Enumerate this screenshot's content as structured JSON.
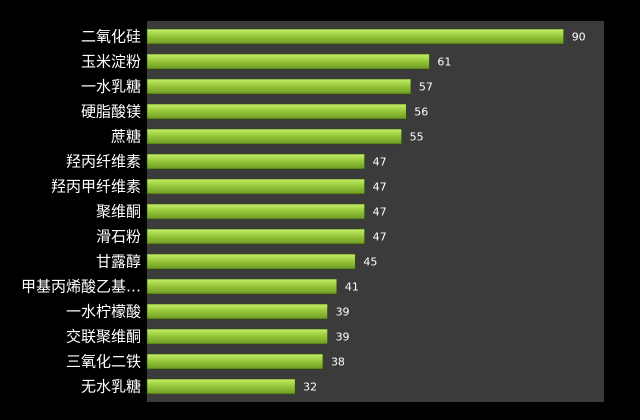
{
  "chart_data": {
    "type": "bar",
    "orientation": "horizontal",
    "categories": [
      "二氧化硅",
      "玉米淀粉",
      "一水乳糖",
      "硬脂酸镁",
      "蔗糖",
      "羟丙纤维素",
      "羟丙甲纤维素",
      "聚维酮",
      "滑石粉",
      "甘露醇",
      "甲基丙烯酸乙基…",
      "一水柠檬酸",
      "交联聚维酮",
      "三氧化二铁",
      "无水乳糖"
    ],
    "values": [
      90,
      61,
      57,
      56,
      55,
      47,
      47,
      47,
      47,
      45,
      41,
      39,
      39,
      38,
      32
    ],
    "xlim": [
      0,
      100
    ],
    "grid": false,
    "legend": "none",
    "data_labels": true,
    "colors": {
      "background": "#000000",
      "plot_area": "#3b3b3b",
      "bar_light": "#c8f06a",
      "bar_mid": "#98c93c",
      "bar_dark": "#6e9a22",
      "text": "#ffffff"
    }
  }
}
